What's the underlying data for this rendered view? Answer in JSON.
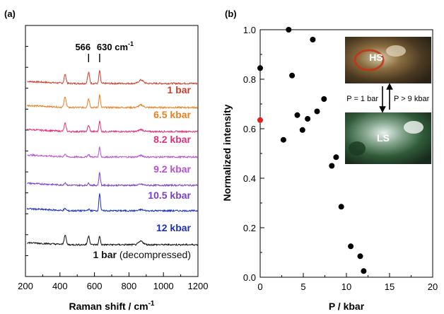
{
  "chart_data": [
    {
      "panel_label": "(a)",
      "type": "line",
      "xlabel": "Raman shift / cm",
      "xlabel_superscript": "-1",
      "ylabel": "",
      "xlim": [
        200,
        1200
      ],
      "xticks": [
        200,
        400,
        600,
        800,
        1000,
        1200
      ],
      "grid": false,
      "peak_markers": [
        {
          "x": 566,
          "label": "566"
        },
        {
          "x": 630,
          "label": "630 cm",
          "superscript": "-1"
        }
      ],
      "series": [
        {
          "name": "1 bar",
          "suffix": "",
          "color": "#d03a2a",
          "peaks": [
            {
              "x": 430,
              "h": 0.9
            },
            {
              "x": 566,
              "h": 1.1
            },
            {
              "x": 630,
              "h": 1.3
            },
            {
              "x": 870,
              "h": 0.35
            }
          ]
        },
        {
          "name": "6.5 kbar",
          "suffix": "",
          "color": "#ee7d1e",
          "peaks": [
            {
              "x": 430,
              "h": 1.1
            },
            {
              "x": 566,
              "h": 0.9
            },
            {
              "x": 630,
              "h": 1.3
            },
            {
              "x": 870,
              "h": 0.25
            }
          ]
        },
        {
          "name": "8.2 kbar",
          "suffix": "",
          "color": "#e0307a",
          "peaks": [
            {
              "x": 430,
              "h": 0.8
            },
            {
              "x": 566,
              "h": 0.6
            },
            {
              "x": 630,
              "h": 1.1
            },
            {
              "x": 870,
              "h": 0.2
            }
          ]
        },
        {
          "name": "9.2 kbar",
          "suffix": "",
          "color": "#b94fd4",
          "peaks": [
            {
              "x": 430,
              "h": 0.3
            },
            {
              "x": 566,
              "h": 0.25
            },
            {
              "x": 630,
              "h": 1.0
            },
            {
              "x": 870,
              "h": 0.15
            }
          ]
        },
        {
          "name": "9.2 kbar",
          "suffix": "",
          "color": "#7a3fc8",
          "peaks": [
            {
              "x": 430,
              "h": 0.25
            },
            {
              "x": 566,
              "h": 0.2
            },
            {
              "x": 630,
              "h": 1.3
            },
            {
              "x": 870,
              "h": 0.1
            }
          ]
        },
        {
          "name": "10.5 kbar",
          "suffix": "",
          "color": "#1a2fc4",
          "peaks": [
            {
              "x": 430,
              "h": 0.2
            },
            {
              "x": 566,
              "h": 0.15
            },
            {
              "x": 630,
              "h": 1.8
            },
            {
              "x": 870,
              "h": 0.1
            }
          ]
        },
        {
          "name": "12 kbar",
          "suffix": "",
          "color": "#111111",
          "peaks": [
            {
              "x": 430,
              "h": 1.0
            },
            {
              "x": 566,
              "h": 0.9
            },
            {
              "x": 630,
              "h": 0.9
            },
            {
              "x": 870,
              "h": 0.35
            }
          ]
        }
      ],
      "trace_label_names": [
        "1 bar",
        "6.5 kbar",
        "8.2 kbar",
        "9.2 kbar",
        "10.5 kbar",
        "12 kbar",
        "1 bar"
      ],
      "last_label_suffix": "(decompressed)"
    },
    {
      "panel_label": "(b)",
      "type": "scatter",
      "xlabel": "P / kbar",
      "ylabel": "Normalized intensity",
      "xlim": [
        0,
        20
      ],
      "ylim": [
        0,
        1.0
      ],
      "xticks": [
        0,
        5,
        10,
        15,
        20
      ],
      "yticks": [
        "0.0",
        "0.2",
        "0.4",
        "0.6",
        "0.8",
        "1.0"
      ],
      "grid": false,
      "points": [
        {
          "x": 0.0,
          "y": 0.845,
          "color": "#000000"
        },
        {
          "x": 0.0,
          "y": 0.635,
          "color": "#e02020"
        },
        {
          "x": 2.7,
          "y": 0.555,
          "color": "#000000"
        },
        {
          "x": 3.3,
          "y": 1.0,
          "color": "#000000"
        },
        {
          "x": 3.7,
          "y": 0.815,
          "color": "#000000"
        },
        {
          "x": 4.3,
          "y": 0.655,
          "color": "#000000"
        },
        {
          "x": 4.9,
          "y": 0.595,
          "color": "#000000"
        },
        {
          "x": 5.5,
          "y": 0.64,
          "color": "#000000"
        },
        {
          "x": 6.1,
          "y": 0.96,
          "color": "#000000"
        },
        {
          "x": 6.6,
          "y": 0.67,
          "color": "#000000"
        },
        {
          "x": 7.4,
          "y": 0.72,
          "color": "#000000"
        },
        {
          "x": 8.3,
          "y": 0.45,
          "color": "#000000"
        },
        {
          "x": 8.8,
          "y": 0.485,
          "color": "#000000"
        },
        {
          "x": 9.4,
          "y": 0.285,
          "color": "#000000"
        },
        {
          "x": 10.5,
          "y": 0.125,
          "color": "#000000"
        },
        {
          "x": 11.6,
          "y": 0.085,
          "color": "#000000"
        },
        {
          "x": 12.0,
          "y": 0.025,
          "color": "#000000"
        }
      ],
      "inset": {
        "top_label": "HS",
        "bottom_label": "LS",
        "left_arrow_label": "P = 1 bar",
        "right_arrow_label": "P > 9 kbar"
      }
    }
  ]
}
